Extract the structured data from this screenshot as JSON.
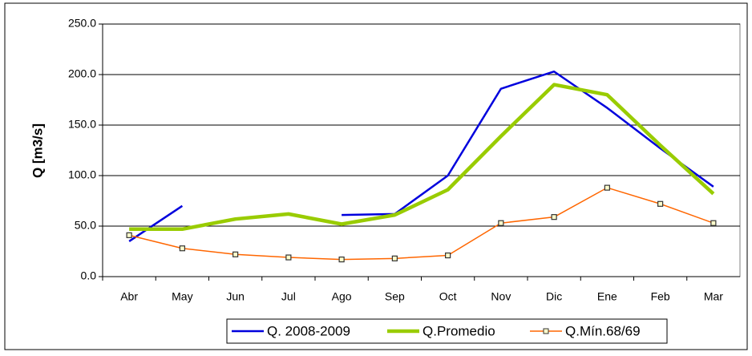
{
  "chart_data": {
    "type": "line",
    "y_label": "Q [m3/s]",
    "categories": [
      "Abr",
      "May",
      "Jun",
      "Jul",
      "Ago",
      "Sep",
      "Oct",
      "Nov",
      "Dic",
      "Ene",
      "Feb",
      "Mar"
    ],
    "series": [
      {
        "name": "Q. 2008-2009",
        "color": "#0000dd",
        "values": [
          35,
          70,
          null,
          null,
          61,
          62,
          100,
          186,
          203,
          167,
          127,
          89
        ]
      },
      {
        "name": "Q.Promedio",
        "color": "#99cc00",
        "values": [
          47,
          47,
          57,
          62,
          52,
          61,
          86,
          139,
          190,
          180,
          130,
          82
        ]
      },
      {
        "name": "Q.Mín.68/69",
        "color": "#ff6600",
        "values": [
          41,
          28,
          22,
          19,
          17,
          18,
          21,
          53,
          59,
          88,
          72,
          53
        ]
      }
    ],
    "ylim": [
      0,
      250
    ],
    "yticks": [
      {
        "value": 0,
        "label": "0.0"
      },
      {
        "value": 50,
        "label": "50.0"
      },
      {
        "value": 100,
        "label": "100.0"
      },
      {
        "value": 150,
        "label": "150.0"
      },
      {
        "value": 200,
        "label": "200.0"
      },
      {
        "value": 250,
        "label": "250.0"
      }
    ],
    "grid": true,
    "legend": "bottom"
  }
}
